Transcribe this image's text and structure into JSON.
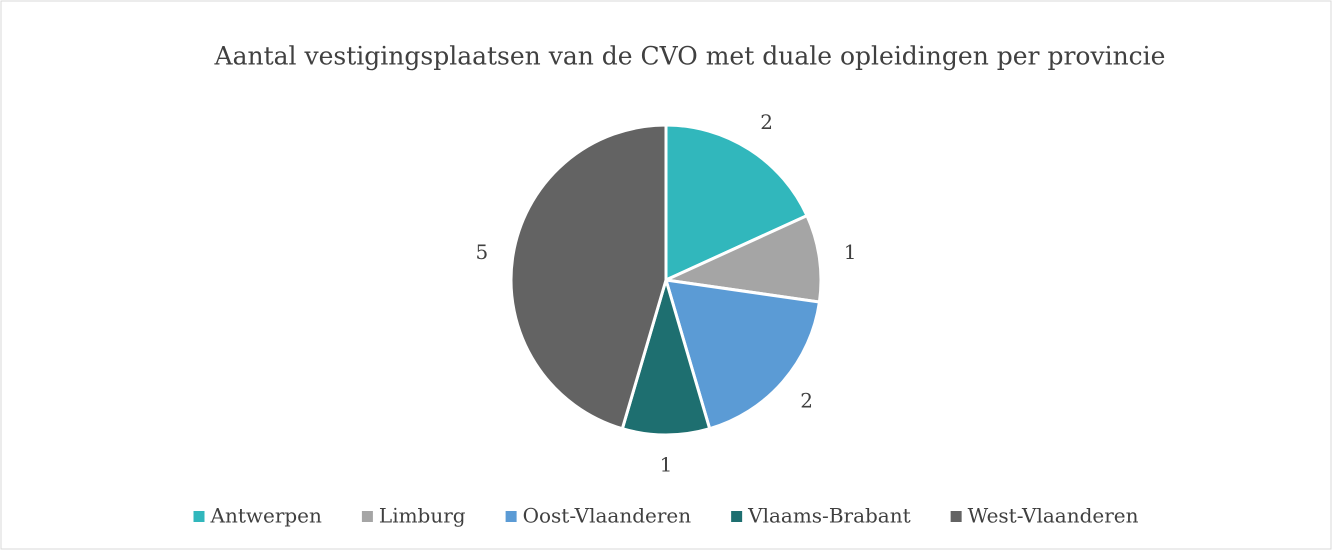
{
  "chart_data": {
    "type": "pie",
    "title": "Aantal vestigingsplaatsen van de CVO met duale opleidingen per provincie",
    "categories": [
      "Antwerpen",
      "Limburg",
      "Oost-Vlaanderen",
      "Vlaams-Brabant",
      "West-Vlaanderen"
    ],
    "values": [
      2,
      1,
      2,
      1,
      5
    ],
    "colors": [
      "#31b7bc",
      "#a5a5a5",
      "#5b9bd5",
      "#1e6f70",
      "#636363"
    ],
    "legend": "bottom"
  }
}
